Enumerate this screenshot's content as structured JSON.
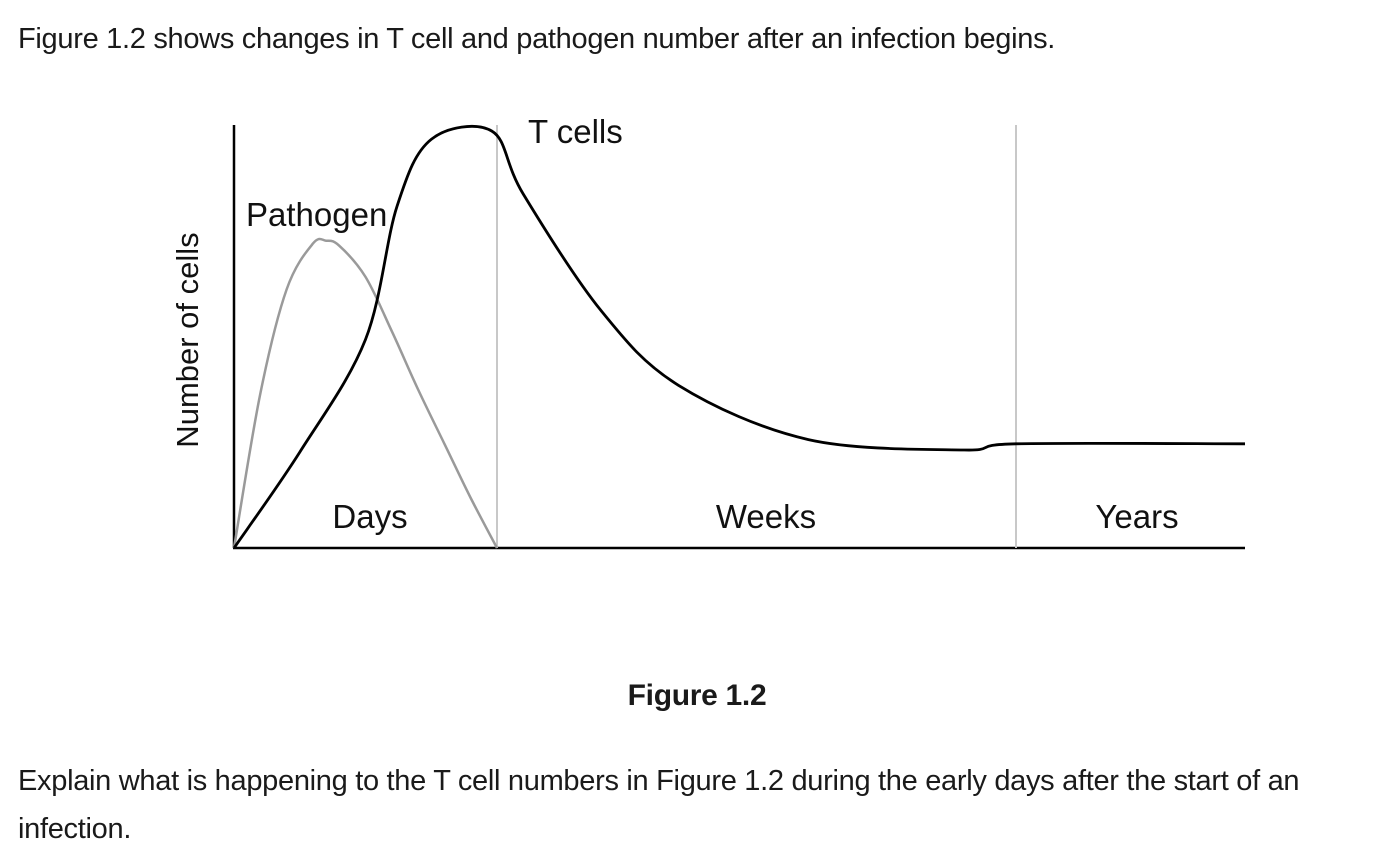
{
  "question": {
    "intro": "Figure 1.2 shows changes in T cell and pathogen number after an infection begins.",
    "prompt": "Explain what is happening to the T cell numbers in Figure 1.2 during the early days after the start of an infection."
  },
  "figure": {
    "caption": "Figure 1.2"
  },
  "chart_data": {
    "type": "line",
    "title": "",
    "ylabel": "Number of cells",
    "xlabel": "",
    "x_segments": [
      {
        "label": "Days",
        "from": 0,
        "to": 1
      },
      {
        "label": "Weeks",
        "from": 1,
        "to": 3
      },
      {
        "label": "Years",
        "from": 3,
        "to": 3.88
      }
    ],
    "xlim": [
      0,
      3.88
    ],
    "ylim": [
      0,
      1
    ],
    "grid": false,
    "legend": "none",
    "series": [
      {
        "name": "Pathogen",
        "color": "#9a9a9a",
        "points": [
          [
            0,
            0
          ],
          [
            0.1,
            0.37
          ],
          [
            0.2,
            0.62
          ],
          [
            0.3,
            0.73
          ],
          [
            0.35,
            0.737
          ],
          [
            0.4,
            0.725
          ],
          [
            0.5,
            0.65
          ],
          [
            0.6,
            0.52
          ],
          [
            0.7,
            0.38
          ],
          [
            0.8,
            0.25
          ],
          [
            0.9,
            0.12
          ],
          [
            1.0,
            0
          ]
        ]
      },
      {
        "name": "T cells",
        "color": "#000000",
        "points": [
          [
            0,
            0
          ],
          [
            0.25,
            0.23
          ],
          [
            0.5,
            0.5
          ],
          [
            0.62,
            0.82
          ],
          [
            0.75,
            0.98
          ],
          [
            0.98,
            1.0
          ],
          [
            1.1,
            0.85
          ],
          [
            1.4,
            0.57
          ],
          [
            1.7,
            0.39
          ],
          [
            2.2,
            0.26
          ],
          [
            2.8,
            0.235
          ],
          [
            3.0,
            0.25
          ],
          [
            3.88,
            0.25
          ]
        ]
      }
    ]
  }
}
